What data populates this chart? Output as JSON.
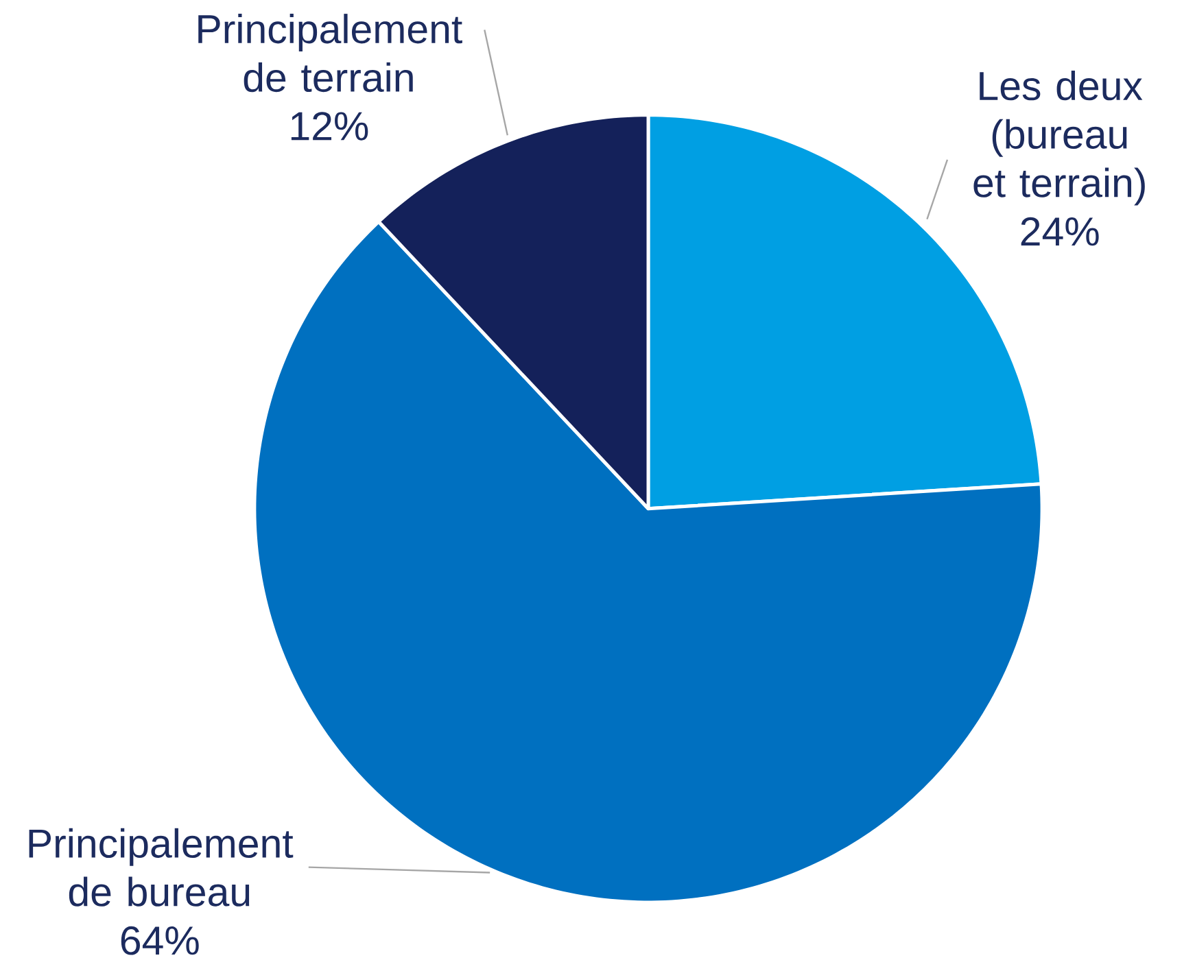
{
  "chart_data": {
    "type": "pie",
    "categories": [
      "Les deux (bureau et terrain)",
      "Principalement de bureau",
      "Principalement de terrain"
    ],
    "values": [
      24,
      64,
      12
    ],
    "value_labels": [
      "24%",
      "64%",
      "12%"
    ],
    "colors": [
      "#009fe3",
      "#0070c0",
      "#14215a"
    ]
  }
}
